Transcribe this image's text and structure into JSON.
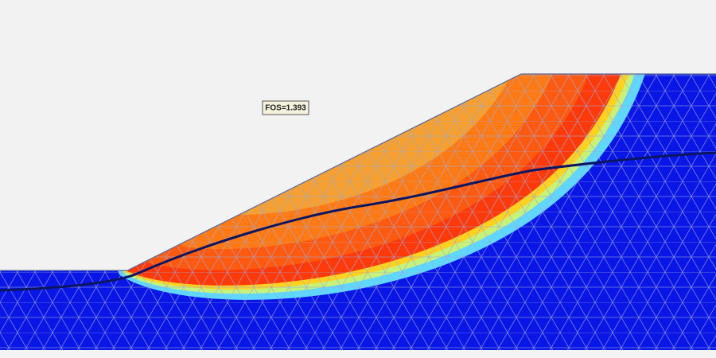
{
  "annotation": {
    "label": "FOS=1.393"
  }
}
